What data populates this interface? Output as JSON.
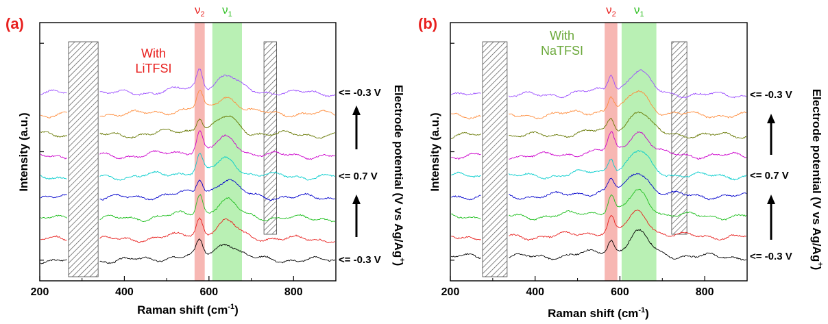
{
  "chart_data": [
    {
      "type": "line",
      "panel_label": "(a)",
      "annotation": [
        "With",
        "LiTFSI"
      ],
      "annotation_color": "#e8201e",
      "xlabel": "Raman shift (cm",
      "xlabel_sup": "-1",
      "xlabel_tail": ")",
      "ylabel": "Intensity (a.u.)",
      "right_label": "Electrode potential (V vs Ag/Ag",
      "right_label_sup": "+",
      "right_label_tail": ")",
      "xlim": [
        200,
        900
      ],
      "xticks": [
        "200",
        "400",
        "600",
        "800"
      ],
      "shaded_regions": [
        {
          "name": "ν2",
          "base": "ν",
          "sub": "2",
          "from": 566,
          "to": 590,
          "color": "#f7b7b3",
          "label_color": "#e8201e"
        },
        {
          "name": "ν1",
          "base": "ν",
          "sub": "1",
          "from": 608,
          "to": 678,
          "color": "#b9f0b4",
          "label_color": "#2fbf22"
        }
      ],
      "masked_regions": [
        {
          "from": 268,
          "to": 338
        },
        {
          "from": 730,
          "to": 760
        }
      ],
      "potential_labels": [
        {
          "text": "<= -0.3 V",
          "row": 8
        },
        {
          "text": "<= 0.7 V",
          "row": 4
        },
        {
          "text": "<= -0.3 V",
          "row": 0
        }
      ],
      "series": [
        {
          "color": "#000000"
        },
        {
          "color": "#e8201e"
        },
        {
          "color": "#1fbf1f"
        },
        {
          "color": "#0000cc"
        },
        {
          "color": "#00cccc"
        },
        {
          "color": "#cc00cc"
        },
        {
          "color": "#667700"
        },
        {
          "color": "#ff8c3b"
        },
        {
          "color": "#9b4dff"
        }
      ]
    },
    {
      "type": "line",
      "panel_label": "(b)",
      "annotation": [
        "With",
        "NaTFSI"
      ],
      "annotation_color": "#6aa83a",
      "xlabel": "Raman shift (cm",
      "xlabel_sup": "-1",
      "xlabel_tail": ")",
      "ylabel": "Intensity (a.u.)",
      "right_label": "Electrode potential (V vs Ag/Ag",
      "right_label_sup": "+",
      "right_label_tail": ")",
      "xlim": [
        200,
        900
      ],
      "xticks": [
        "200",
        "400",
        "600",
        "800"
      ],
      "shaded_regions": [
        {
          "name": "ν2",
          "base": "ν",
          "sub": "2",
          "from": 564,
          "to": 594,
          "color": "#f7b7b3",
          "label_color": "#e8201e"
        },
        {
          "name": "ν1",
          "base": "ν",
          "sub": "1",
          "from": 604,
          "to": 686,
          "color": "#b9f0b4",
          "label_color": "#2fbf22"
        }
      ],
      "masked_regions": [
        {
          "from": 276,
          "to": 334
        },
        {
          "from": 722,
          "to": 758
        }
      ],
      "potential_labels": [
        {
          "text": "<= -0.3 V",
          "row": 8
        },
        {
          "text": "<= 0.7 V",
          "row": 4
        },
        {
          "text": "<= -0.3 V",
          "row": 0
        }
      ],
      "series": [
        {
          "color": "#000000"
        },
        {
          "color": "#e8201e"
        },
        {
          "color": "#1fbf1f"
        },
        {
          "color": "#0000cc"
        },
        {
          "color": "#00cccc"
        },
        {
          "color": "#cc00cc"
        },
        {
          "color": "#667700"
        },
        {
          "color": "#ff8c3b"
        },
        {
          "color": "#9b4dff"
        }
      ]
    }
  ]
}
